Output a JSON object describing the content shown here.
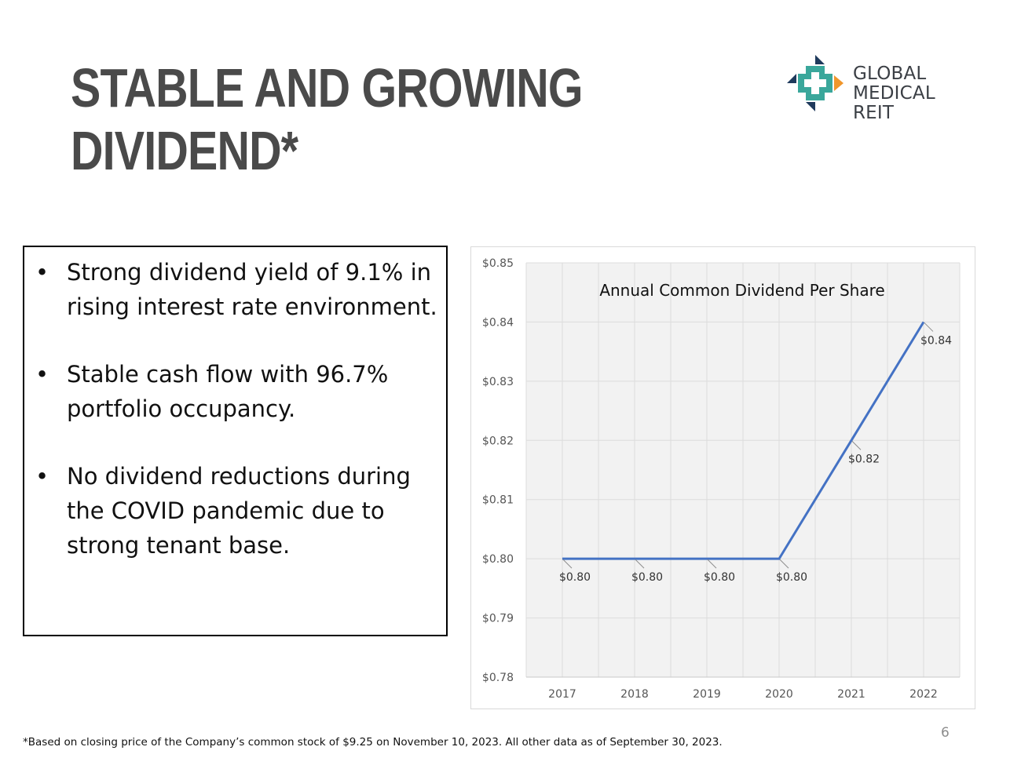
{
  "slide": {
    "title_lines": [
      "STABLE AND GROWING",
      "DIVIDEND*"
    ],
    "logo": {
      "line1": "GLOBAL",
      "line2": "MEDICAL REIT"
    },
    "bullets": [
      "Strong dividend yield of 9.1% in rising interest rate environment.",
      "Stable cash flow with 96.7% portfolio occupancy.",
      "No dividend reductions during the COVID pandemic due to strong tenant base."
    ],
    "bullet_glyph": "•",
    "footnote": "*Based on closing price of the Company’s common stock of $9.25 on November 10, 2023.  All other data as of September 30, 2023.",
    "page_number": "6"
  },
  "colors": {
    "title": "#4a4a4a",
    "line": "#4472c4",
    "plot_bg": "#f2f2f2",
    "grid": "#dcdcdc",
    "logo_teal": "#3aa79b",
    "logo_navy": "#1f3a5c",
    "logo_orange": "#f0962a"
  },
  "chart_data": {
    "type": "line",
    "title": "Annual Common Dividend Per Share",
    "categories": [
      "2017",
      "2018",
      "2019",
      "2020",
      "2021",
      "2022"
    ],
    "values": [
      0.8,
      0.8,
      0.8,
      0.8,
      0.82,
      0.84
    ],
    "data_labels": [
      "$0.80",
      "$0.80",
      "$0.80",
      "$0.80",
      "$0.82",
      "$0.84"
    ],
    "yticks": [
      "$0.85",
      "$0.84",
      "$0.83",
      "$0.82",
      "$0.81",
      "$0.80",
      "$0.79",
      "$0.78"
    ],
    "ylim": [
      0.78,
      0.85
    ],
    "xlabel": "",
    "ylabel": "",
    "grid": true,
    "legend": "none"
  }
}
